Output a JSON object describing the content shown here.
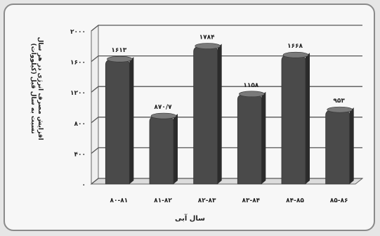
{
  "chart_data": {
    "type": "bar",
    "title": "",
    "ylabel_line1": "افزایش مصرف انرژی در هر سال",
    "ylabel_line2": "نسبت به سال قبل (کیلووات)",
    "xlabel": "سال آبی",
    "categories": [
      "۸۰-۸۱",
      "۸۱-۸۲",
      "۸۲-۸۳",
      "۸۳-۸۴",
      "۸۴-۸۵",
      "۸۵-۸۶"
    ],
    "values": [
      1613,
      870.7,
      1784,
      1158,
      1668,
      953
    ],
    "data_labels": [
      "۱۶۱۳",
      "۸۷۰/۷",
      "۱۷۸۴",
      "۱۱۵۸",
      "۱۶۶۸",
      "۹۵۳"
    ],
    "yticks": [
      "۰",
      "۴۰۰",
      "۸۰۰",
      "۱۲۰۰",
      "۱۶۰۰",
      "۲۰۰۰"
    ],
    "ylim": [
      0,
      2000
    ],
    "grid": true,
    "colors": {
      "bar": "#4a4a4a",
      "bar_top": "#7a7a7a",
      "bar_side": "#2b2b2b",
      "grid": "#555555"
    }
  }
}
